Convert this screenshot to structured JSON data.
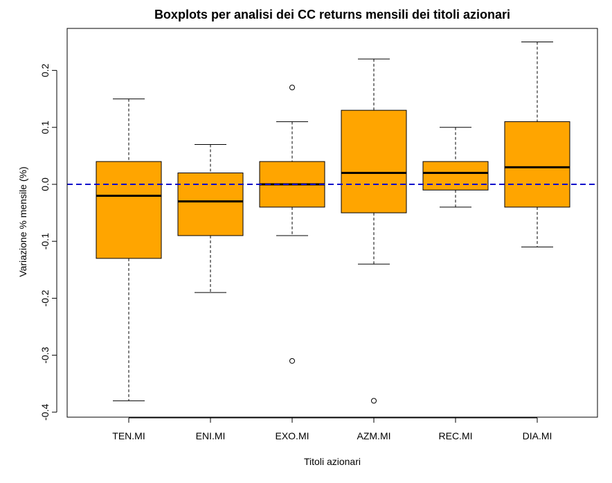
{
  "chart_data": {
    "type": "boxplot",
    "title": "Boxplots per analisi dei CC returns mensili dei titoli azionari",
    "xlabel": "Titoli azionari",
    "ylabel": "Variazione % mensile (%)",
    "ylim": [
      -0.4,
      0.25
    ],
    "yticks": [
      "0.2",
      "0.1",
      "0.0",
      "-0.1",
      "-0.2",
      "-0.3",
      "-0.4"
    ],
    "ytick_values": [
      0.2,
      0.1,
      0.0,
      -0.1,
      -0.2,
      -0.3,
      -0.4
    ],
    "reference_line": {
      "y": 0.0,
      "style": "dashed",
      "color": "#0000cc"
    },
    "box_color": "#ffa500",
    "grid": false,
    "categories": [
      "TEN.MI",
      "ENI.MI",
      "EXO.MI",
      "AZM.MI",
      "REC.MI",
      "DIA.MI"
    ],
    "boxes": [
      {
        "name": "TEN.MI",
        "min": -0.38,
        "q1": -0.13,
        "median": -0.02,
        "q3": 0.04,
        "max": 0.15,
        "outliers": []
      },
      {
        "name": "ENI.MI",
        "min": -0.19,
        "q1": -0.09,
        "median": -0.03,
        "q3": 0.02,
        "max": 0.07,
        "outliers": []
      },
      {
        "name": "EXO.MI",
        "min": -0.09,
        "q1": -0.04,
        "median": 0.0,
        "q3": 0.04,
        "max": 0.11,
        "outliers": [
          0.17,
          -0.31
        ]
      },
      {
        "name": "AZM.MI",
        "min": -0.14,
        "q1": -0.05,
        "median": 0.02,
        "q3": 0.13,
        "max": 0.22,
        "outliers": [
          -0.38
        ]
      },
      {
        "name": "REC.MI",
        "min": -0.04,
        "q1": -0.01,
        "median": 0.02,
        "q3": 0.04,
        "max": 0.1,
        "outliers": []
      },
      {
        "name": "DIA.MI",
        "min": -0.11,
        "q1": -0.04,
        "median": 0.03,
        "q3": 0.11,
        "max": 0.25,
        "outliers": []
      }
    ]
  }
}
